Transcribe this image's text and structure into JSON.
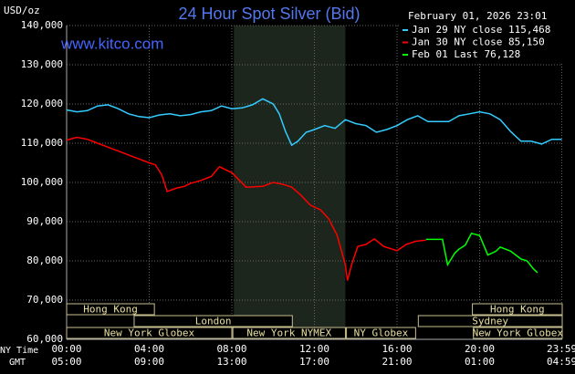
{
  "chart_data": {
    "type": "line",
    "title": "24 Hour Spot Silver (Bid)",
    "unit_label": "USD/oz",
    "timestamp": "February 01, 2026 23:01",
    "site": "www.kitco.com",
    "x_row_labels": [
      "NY Time",
      "GMT"
    ],
    "xlim": [
      0,
      24
    ],
    "xticks": [
      {
        "value": 0,
        "label": "00:00"
      },
      {
        "value": 4,
        "label": "04:00"
      },
      {
        "value": 8,
        "label": "08:00"
      },
      {
        "value": 12,
        "label": "12:00"
      },
      {
        "value": 16,
        "label": "16:00"
      },
      {
        "value": 20,
        "label": "20:00"
      },
      {
        "value": 23.98,
        "label": "23:59"
      }
    ],
    "gmt_labels": [
      "05:00",
      "09:00",
      "13:00",
      "17:00",
      "21:00",
      "01:00",
      "04:59"
    ],
    "ylim": [
      60000,
      140000
    ],
    "yticks": [
      {
        "value": 60000,
        "label": "60,000"
      },
      {
        "value": 70000,
        "label": "70,000"
      },
      {
        "value": 80000,
        "label": "80,000"
      },
      {
        "value": 90000,
        "label": "90,000"
      },
      {
        "value": 100000,
        "label": "100,000"
      },
      {
        "value": 110000,
        "label": "110,000"
      },
      {
        "value": 120000,
        "label": "120,000"
      },
      {
        "value": 130000,
        "label": "130,000"
      },
      {
        "value": 140000,
        "label": "140,000"
      }
    ],
    "grid": true,
    "legend": "top-right",
    "shaded_range": [
      8.1,
      13.5
    ],
    "sessions": [
      [
        {
          "label": "Hong Kong",
          "start": 0,
          "end": 4.25
        },
        {
          "label": "Hong Kong",
          "start": 19.65,
          "end": 24
        }
      ],
      [
        {
          "label": "London",
          "start": 3.27,
          "end": 10.93
        },
        {
          "label": "Sydney",
          "start": 17.03,
          "end": 24
        }
      ],
      [
        {
          "label": "New York Globex",
          "start": 0,
          "end": 8.0
        },
        {
          "label": "New York NYMEX",
          "start": 8.05,
          "end": 13.5
        },
        {
          "label": "NY Globex",
          "start": 13.55,
          "end": 16.9
        },
        {
          "label": "New York Globex",
          "start": 19.7,
          "end": 24
        }
      ]
    ],
    "series": [
      {
        "name": "Jan 29 NY close 115,468",
        "color": "#33ccff",
        "x": [
          0,
          0.5,
          1,
          1.5,
          2,
          2.5,
          3,
          3.5,
          4,
          4.5,
          5,
          5.5,
          6,
          6.5,
          7,
          7.5,
          8,
          8.5,
          9,
          9.5,
          10,
          10.3,
          10.6,
          10.9,
          11.2,
          11.6,
          12,
          12.5,
          13,
          13.5,
          14,
          14.5,
          15,
          15.5,
          16,
          16.5,
          17,
          17.5,
          18,
          18.5,
          19,
          19.5,
          20,
          20.5,
          21,
          21.5,
          22,
          22.5,
          23,
          23.5,
          23.98
        ],
        "values": [
          118500,
          118000,
          118300,
          119500,
          119800,
          118800,
          117500,
          116800,
          116500,
          117200,
          117500,
          117000,
          117300,
          118000,
          118300,
          119500,
          118800,
          119000,
          119800,
          121300,
          120000,
          117500,
          113000,
          109500,
          110500,
          112800,
          113500,
          114500,
          113800,
          116000,
          115000,
          114500,
          112800,
          113500,
          114500,
          116000,
          117000,
          115500,
          115500,
          115500,
          117000,
          117500,
          118000,
          117500,
          116000,
          113000,
          110500,
          110500,
          109800,
          111000,
          111000
        ]
      },
      {
        "name": "Jan 30 NY close 85,150",
        "color": "#ff0000",
        "x": [
          0,
          0.5,
          1,
          1.5,
          2,
          2.5,
          3,
          3.5,
          4,
          4.3,
          4.6,
          4.87,
          5.3,
          5.7,
          6,
          6.5,
          7,
          7.4,
          8,
          8.7,
          9.5,
          10,
          10.5,
          10.9,
          11.3,
          11.8,
          12.3,
          12.7,
          13.1,
          13.5,
          13.6,
          13.8,
          14.1,
          14.5,
          14.9,
          15.35,
          16,
          16.45,
          16.9,
          17.4
        ],
        "values": [
          110800,
          111500,
          111000,
          110000,
          109000,
          108000,
          107000,
          106000,
          105000,
          104500,
          102000,
          97700,
          98500,
          99000,
          99800,
          100500,
          101500,
          104000,
          102500,
          98800,
          99000,
          100000,
          99500,
          98800,
          97000,
          94200,
          93000,
          90700,
          86500,
          79000,
          75000,
          79000,
          83700,
          84200,
          85600,
          83700,
          82600,
          84200,
          85000,
          85300
        ]
      },
      {
        "name": "Feb 01 Last 76,128",
        "color": "#00ff00",
        "x": [
          17.4,
          18,
          18.2,
          18.45,
          18.8,
          19,
          19.3,
          19.6,
          20,
          20.4,
          20.8,
          21,
          21.5,
          22,
          22.3,
          22.6,
          22.8
        ],
        "values": [
          85500,
          85500,
          85500,
          79000,
          82000,
          83000,
          84000,
          87000,
          86500,
          81500,
          82500,
          83500,
          82500,
          80500,
          80000,
          78000,
          77000
        ]
      }
    ]
  }
}
